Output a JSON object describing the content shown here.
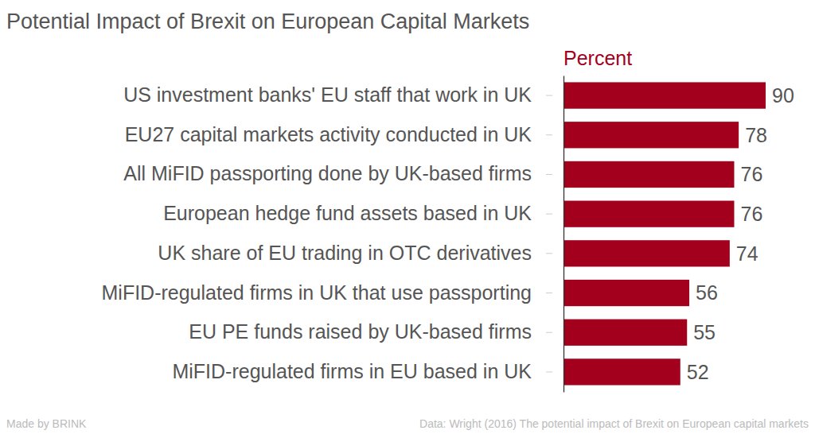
{
  "chart_data": {
    "type": "bar",
    "orientation": "horizontal",
    "title": "Potential Impact of Brexit on European Capital Markets",
    "xlabel": "Percent",
    "categories": [
      "US investment banks' EU staff that work in UK",
      "EU27 capital markets activity conducted in UK",
      "All MiFID passporting done by UK-based firms",
      "European hedge fund assets based in UK",
      "UK share of EU trading in OTC derivatives",
      "MiFID-regulated firms in UK that use passporting",
      "EU PE funds raised by UK-based firms",
      "MiFID-regulated firms in EU based in UK"
    ],
    "values": [
      90,
      78,
      76,
      76,
      74,
      56,
      55,
      52
    ],
    "color": "#a3001e",
    "data_labels": true,
    "tick_labels": "y",
    "grid": false,
    "annotations": [
      "Made by BRINK",
      "Data: Wright (2016) The potential impact of Brexit on European capital markets"
    ]
  }
}
